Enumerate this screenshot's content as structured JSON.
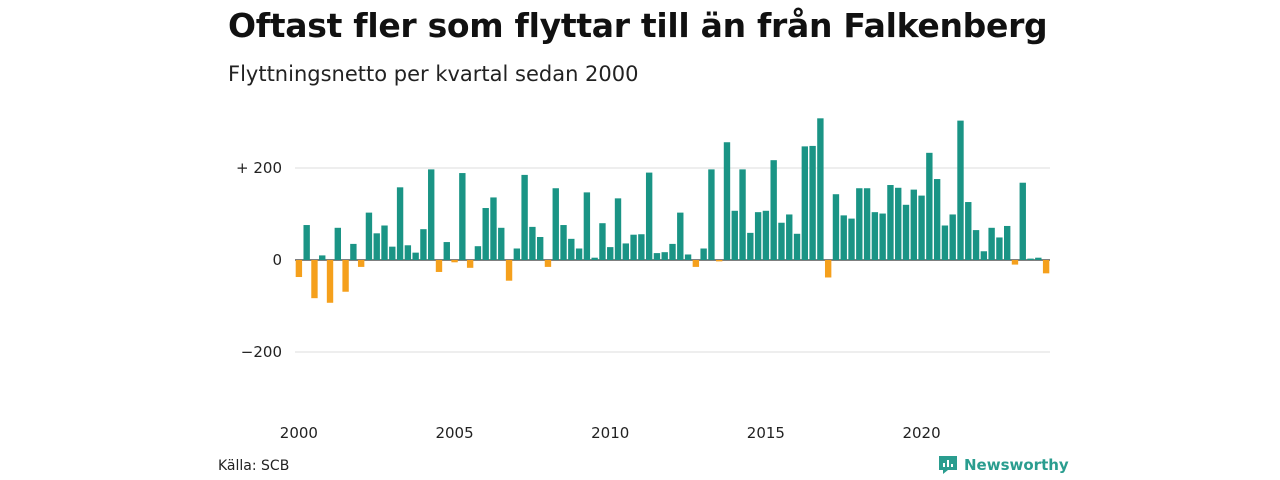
{
  "title": "Oftast fler som flyttar till än från Falkenberg",
  "subtitle": "Flyttningsnetto per kvartal sedan 2000",
  "source": "Källa: SCB",
  "brand": {
    "name": "Newsworthy",
    "icon": "newsworthy-logo-icon"
  },
  "colors": {
    "positive": "#1a9485",
    "negative": "#f5a01c",
    "grid": "#dddddd",
    "zero": "#333333"
  },
  "chart_data": {
    "type": "bar",
    "title": "Oftast fler som flyttar till än från Falkenberg",
    "subtitle": "Flyttningsnetto per kvartal sedan 2000",
    "xlabel": "",
    "ylabel": "",
    "ylim": [
      -300,
      320
    ],
    "grid": true,
    "y_ticks": [
      {
        "value": 200,
        "label": "+ 200"
      },
      {
        "value": 0,
        "label": "0"
      },
      {
        "value": -200,
        "label": "−200"
      }
    ],
    "x_ticks": [
      "2000",
      "2005",
      "2010",
      "2015",
      "2020"
    ],
    "start": "2000-Q1",
    "frequency": "quarter",
    "values": [
      -37,
      76,
      -83,
      10,
      -93,
      70,
      -69,
      35,
      -15,
      103,
      58,
      75,
      29,
      158,
      32,
      16,
      67,
      197,
      -26,
      39,
      -5,
      189,
      -17,
      30,
      113,
      136,
      70,
      -45,
      25,
      185,
      72,
      50,
      -15,
      156,
      76,
      46,
      25,
      147,
      5,
      80,
      28,
      134,
      36,
      55,
      56,
      190,
      15,
      17,
      35,
      103,
      12,
      -15,
      25,
      197,
      -3,
      256,
      107,
      197,
      59,
      104,
      107,
      217,
      81,
      99,
      57,
      247,
      248,
      308,
      -38,
      143,
      97,
      90,
      156,
      156,
      104,
      101,
      163,
      157,
      120,
      153,
      140,
      233,
      176,
      75,
      99,
      303,
      126,
      65,
      19,
      70,
      49,
      74,
      -10,
      168,
      3,
      5,
      -29
    ]
  }
}
